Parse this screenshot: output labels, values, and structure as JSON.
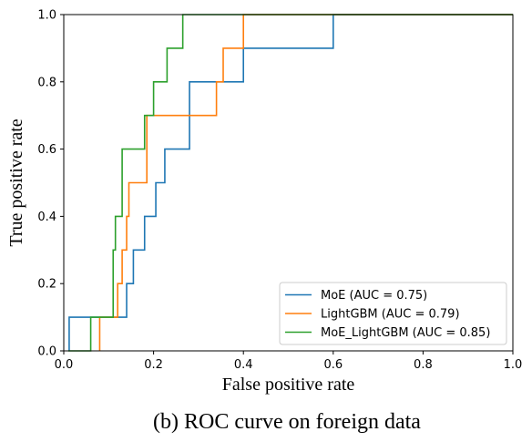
{
  "chart_data": {
    "type": "line",
    "xlabel": "False positive rate",
    "ylabel": "True positive rate",
    "xlim": [
      0,
      1
    ],
    "ylim": [
      0,
      1
    ],
    "xticks": [
      "0.0",
      "0.2",
      "0.4",
      "0.6",
      "0.8",
      "1.0"
    ],
    "yticks": [
      "0.0",
      "0.2",
      "0.4",
      "0.6",
      "0.8",
      "1.0"
    ],
    "grid": false,
    "legend_position": "lower-right",
    "series": [
      {
        "name": "MoE (AUC = 0.75)",
        "color": "#1f77b4",
        "x": [
          0.012,
          0.012,
          0.06,
          0.06,
          0.14,
          0.14,
          0.155,
          0.155,
          0.18,
          0.18,
          0.205,
          0.205,
          0.225,
          0.225,
          0.28,
          0.28,
          0.4,
          0.4,
          0.6,
          0.6,
          1.0
        ],
        "y": [
          0.0,
          0.1,
          0.1,
          0.1,
          0.1,
          0.2,
          0.2,
          0.3,
          0.3,
          0.4,
          0.4,
          0.5,
          0.5,
          0.6,
          0.6,
          0.8,
          0.8,
          0.9,
          0.9,
          1.0,
          1.0
        ]
      },
      {
        "name": "LightGBM (AUC = 0.79)",
        "color": "#ff7f0e",
        "x": [
          0.08,
          0.08,
          0.12,
          0.12,
          0.13,
          0.13,
          0.14,
          0.14,
          0.145,
          0.145,
          0.185,
          0.185,
          0.34,
          0.34,
          0.355,
          0.355,
          0.4,
          0.4,
          1.0
        ],
        "y": [
          0.0,
          0.1,
          0.1,
          0.2,
          0.2,
          0.3,
          0.3,
          0.4,
          0.4,
          0.5,
          0.5,
          0.7,
          0.7,
          0.8,
          0.8,
          0.9,
          0.9,
          1.0,
          1.0
        ]
      },
      {
        "name": "MoE_LightGBM (AUC = 0.85)",
        "color": "#2ca02c",
        "x": [
          0.01,
          0.06,
          0.06,
          0.11,
          0.11,
          0.115,
          0.115,
          0.13,
          0.13,
          0.18,
          0.18,
          0.2,
          0.2,
          0.23,
          0.23,
          0.265,
          0.265,
          1.0
        ],
        "y": [
          0.0,
          0.0,
          0.1,
          0.1,
          0.3,
          0.3,
          0.4,
          0.4,
          0.6,
          0.6,
          0.7,
          0.7,
          0.8,
          0.8,
          0.9,
          0.9,
          1.0,
          1.0
        ]
      }
    ]
  },
  "caption": "(b) ROC curve on foreign data"
}
